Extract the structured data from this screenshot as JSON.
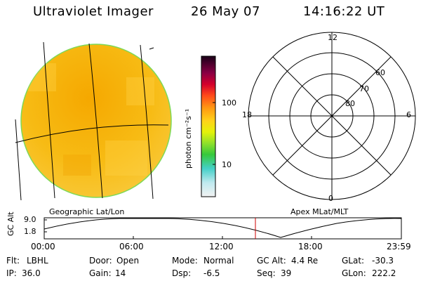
{
  "header": {
    "instrument": "Ultraviolet Imager",
    "date": "26 May 07",
    "time": "14:16:22 UT"
  },
  "colorbar": {
    "label": "photon cm⁻²s⁻¹",
    "ticks": [
      "100",
      "10"
    ]
  },
  "panels": {
    "left_label": "Geographic Lat/Lon",
    "right_label": "Apex MLat/MLT"
  },
  "polar": {
    "mlt_labels": {
      "top": "12",
      "left": "18",
      "right": "6",
      "bottom": "0"
    },
    "lat_labels": [
      "60",
      "70",
      "80"
    ]
  },
  "altitude_plot": {
    "axis_label": "GC Alt",
    "y_ticks": [
      "9.0",
      "1.8"
    ],
    "x_ticks": [
      "00:00",
      "06:00",
      "12:00",
      "18:00",
      "23:59"
    ],
    "marker_color": "#cc0000"
  },
  "footer": {
    "row1": [
      {
        "label": "Flt:",
        "value": "LBHL"
      },
      {
        "label": "Door:",
        "value": "Open"
      },
      {
        "label": "Mode:",
        "value": "Normal"
      },
      {
        "label": "GC Alt:",
        "value": "4.4 Re"
      },
      {
        "label": "GLat:",
        "value": "-30.3"
      }
    ],
    "row2": [
      {
        "label": "IP:",
        "value": "36.0"
      },
      {
        "label": "Gain:",
        "value": "14"
      },
      {
        "label": "Dsp:",
        "value": "-6.5"
      },
      {
        "label": "Seq:",
        "value": "39"
      },
      {
        "label": "GLon:",
        "value": "222.2"
      }
    ]
  },
  "colors": {
    "disk_fill": "#f4b400",
    "disk_edge": "#7ed957",
    "marker": "#cc0000"
  }
}
